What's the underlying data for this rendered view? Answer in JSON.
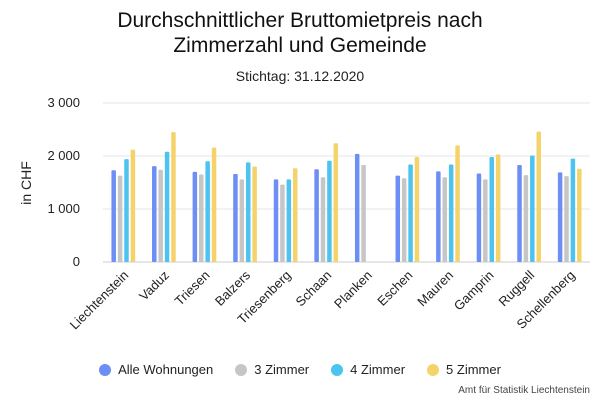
{
  "chart_data": {
    "type": "bar",
    "title_line1": "Durchschnittlicher Bruttomietpreis nach",
    "title_line2": "Zimmerzahl und Gemeinde",
    "subtitle": "Stichtag: 31.12.2020",
    "ylabel": "in CHF",
    "ylim": [
      0,
      3000
    ],
    "yticks": [
      0,
      1000,
      2000,
      3000
    ],
    "ytick_labels": [
      "0",
      "1 000",
      "2 000",
      "3 000"
    ],
    "grid": true,
    "legend_position": "bottom",
    "categories": [
      "Liechtenstein",
      "Vaduz",
      "Triesen",
      "Balzers",
      "Triesenberg",
      "Schaan",
      "Planken",
      "Eschen",
      "Mauren",
      "Gamprin",
      "Ruggell",
      "Schellenberg"
    ],
    "series": [
      {
        "name": "Alle Wohnungen",
        "color": "#6c8ef5",
        "values": [
          1730,
          1810,
          1700,
          1660,
          1560,
          1750,
          2040,
          1630,
          1710,
          1670,
          1830,
          1690
        ]
      },
      {
        "name": "3 Zimmer",
        "color": "#c6c6c6",
        "values": [
          1630,
          1740,
          1650,
          1560,
          1460,
          1600,
          1830,
          1580,
          1600,
          1560,
          1640,
          1620
        ]
      },
      {
        "name": "4 Zimmer",
        "color": "#4dc3f0",
        "values": [
          1940,
          2080,
          1900,
          1880,
          1560,
          1910,
          null,
          1840,
          1840,
          1980,
          2010,
          1950
        ]
      },
      {
        "name": "5 Zimmer",
        "color": "#f5d36b",
        "values": [
          2120,
          2450,
          2160,
          1800,
          1770,
          2240,
          null,
          1980,
          2200,
          2030,
          2460,
          1760
        ]
      }
    ],
    "source": "Amt für Statistik Liechtenstein"
  }
}
